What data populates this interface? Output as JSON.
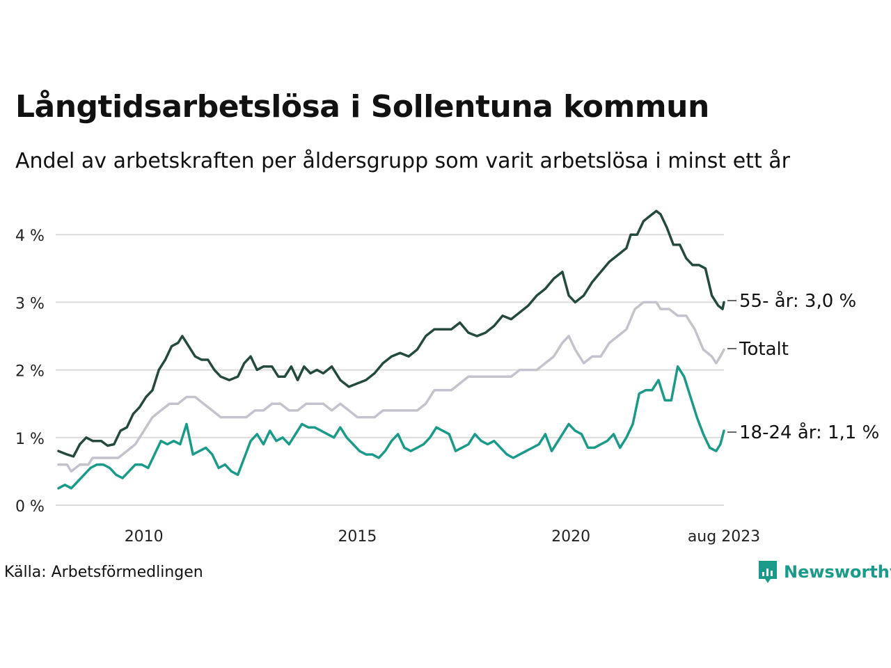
{
  "title": "Långtidsarbetslösa i Sollentuna kommun",
  "subtitle": "Andel av arbetskraften per åldersgrupp som varit arbetslösa i minst ett år",
  "source": "Källa: Arbetsförmedlingen",
  "logo_text": "Newsworthy",
  "colors": {
    "s55": "#24493d",
    "total": "#c4c2cd",
    "young": "#1a9b8a",
    "grid": "#dcdcdc"
  },
  "chart_data": {
    "type": "line",
    "start": "2008-01",
    "end": "2023-08",
    "x_ticks": [
      {
        "label": "2010",
        "value": 2010.0
      },
      {
        "label": "2015",
        "value": 2015.0
      },
      {
        "label": "2020",
        "value": 2020.0
      },
      {
        "label": "aug 2023",
        "value": 2023.583
      }
    ],
    "y_ticks": [
      {
        "label": "0 %",
        "value": 0
      },
      {
        "label": "1 %",
        "value": 1
      },
      {
        "label": "2 %",
        "value": 2
      },
      {
        "label": "3 %",
        "value": 3
      },
      {
        "label": "4 %",
        "value": 4
      }
    ],
    "ylim": [
      0,
      4.4
    ],
    "series": [
      {
        "key": "total",
        "name": "Totalt",
        "end_label": "Totalt",
        "points": [
          [
            2008.0,
            0.6
          ],
          [
            2008.2,
            0.6
          ],
          [
            2008.3,
            0.5
          ],
          [
            2008.5,
            0.6
          ],
          [
            2008.7,
            0.6
          ],
          [
            2008.8,
            0.7
          ],
          [
            2009.0,
            0.7
          ],
          [
            2009.2,
            0.7
          ],
          [
            2009.4,
            0.7
          ],
          [
            2009.6,
            0.8
          ],
          [
            2009.8,
            0.9
          ],
          [
            2010.0,
            1.1
          ],
          [
            2010.2,
            1.3
          ],
          [
            2010.4,
            1.4
          ],
          [
            2010.6,
            1.5
          ],
          [
            2010.8,
            1.5
          ],
          [
            2011.0,
            1.6
          ],
          [
            2011.2,
            1.6
          ],
          [
            2011.4,
            1.5
          ],
          [
            2011.6,
            1.4
          ],
          [
            2011.8,
            1.3
          ],
          [
            2012.0,
            1.3
          ],
          [
            2012.2,
            1.3
          ],
          [
            2012.4,
            1.3
          ],
          [
            2012.6,
            1.4
          ],
          [
            2012.8,
            1.4
          ],
          [
            2013.0,
            1.5
          ],
          [
            2013.2,
            1.5
          ],
          [
            2013.4,
            1.4
          ],
          [
            2013.6,
            1.4
          ],
          [
            2013.8,
            1.5
          ],
          [
            2014.0,
            1.5
          ],
          [
            2014.2,
            1.5
          ],
          [
            2014.4,
            1.4
          ],
          [
            2014.6,
            1.5
          ],
          [
            2014.8,
            1.4
          ],
          [
            2015.0,
            1.3
          ],
          [
            2015.2,
            1.3
          ],
          [
            2015.4,
            1.3
          ],
          [
            2015.6,
            1.4
          ],
          [
            2015.8,
            1.4
          ],
          [
            2016.0,
            1.4
          ],
          [
            2016.2,
            1.4
          ],
          [
            2016.4,
            1.4
          ],
          [
            2016.6,
            1.5
          ],
          [
            2016.8,
            1.7
          ],
          [
            2017.0,
            1.7
          ],
          [
            2017.2,
            1.7
          ],
          [
            2017.4,
            1.8
          ],
          [
            2017.6,
            1.9
          ],
          [
            2017.8,
            1.9
          ],
          [
            2018.0,
            1.9
          ],
          [
            2018.2,
            1.9
          ],
          [
            2018.4,
            1.9
          ],
          [
            2018.6,
            1.9
          ],
          [
            2018.8,
            2.0
          ],
          [
            2019.0,
            2.0
          ],
          [
            2019.2,
            2.0
          ],
          [
            2019.4,
            2.1
          ],
          [
            2019.6,
            2.2
          ],
          [
            2019.8,
            2.4
          ],
          [
            2019.95,
            2.5
          ],
          [
            2020.1,
            2.3
          ],
          [
            2020.3,
            2.1
          ],
          [
            2020.5,
            2.2
          ],
          [
            2020.7,
            2.2
          ],
          [
            2020.9,
            2.4
          ],
          [
            2021.1,
            2.5
          ],
          [
            2021.3,
            2.6
          ],
          [
            2021.5,
            2.9
          ],
          [
            2021.7,
            3.0
          ],
          [
            2021.9,
            3.0
          ],
          [
            2022.0,
            3.0
          ],
          [
            2022.1,
            2.9
          ],
          [
            2022.3,
            2.9
          ],
          [
            2022.5,
            2.8
          ],
          [
            2022.7,
            2.8
          ],
          [
            2022.9,
            2.6
          ],
          [
            2023.1,
            2.3
          ],
          [
            2023.3,
            2.2
          ],
          [
            2023.4,
            2.1
          ],
          [
            2023.5,
            2.2
          ],
          [
            2023.583,
            2.3
          ]
        ]
      },
      {
        "key": "s55",
        "name": "55- år",
        "end_label": "55- år: 3,0 %",
        "points": [
          [
            2008.0,
            0.8
          ],
          [
            2008.2,
            0.75
          ],
          [
            2008.35,
            0.72
          ],
          [
            2008.5,
            0.9
          ],
          [
            2008.65,
            1.0
          ],
          [
            2008.8,
            0.95
          ],
          [
            2009.0,
            0.95
          ],
          [
            2009.15,
            0.88
          ],
          [
            2009.3,
            0.9
          ],
          [
            2009.45,
            1.1
          ],
          [
            2009.6,
            1.15
          ],
          [
            2009.75,
            1.35
          ],
          [
            2009.9,
            1.45
          ],
          [
            2010.05,
            1.6
          ],
          [
            2010.2,
            1.7
          ],
          [
            2010.35,
            2.0
          ],
          [
            2010.5,
            2.15
          ],
          [
            2010.65,
            2.35
          ],
          [
            2010.8,
            2.4
          ],
          [
            2010.9,
            2.5
          ],
          [
            2011.05,
            2.35
          ],
          [
            2011.2,
            2.2
          ],
          [
            2011.35,
            2.15
          ],
          [
            2011.5,
            2.15
          ],
          [
            2011.65,
            2.0
          ],
          [
            2011.8,
            1.9
          ],
          [
            2012.0,
            1.85
          ],
          [
            2012.2,
            1.9
          ],
          [
            2012.35,
            2.1
          ],
          [
            2012.5,
            2.2
          ],
          [
            2012.65,
            2.0
          ],
          [
            2012.8,
            2.05
          ],
          [
            2013.0,
            2.05
          ],
          [
            2013.15,
            1.9
          ],
          [
            2013.3,
            1.9
          ],
          [
            2013.45,
            2.05
          ],
          [
            2013.6,
            1.85
          ],
          [
            2013.75,
            2.05
          ],
          [
            2013.9,
            1.95
          ],
          [
            2014.05,
            2.0
          ],
          [
            2014.2,
            1.95
          ],
          [
            2014.4,
            2.05
          ],
          [
            2014.6,
            1.85
          ],
          [
            2014.8,
            1.75
          ],
          [
            2015.0,
            1.8
          ],
          [
            2015.2,
            1.85
          ],
          [
            2015.4,
            1.95
          ],
          [
            2015.6,
            2.1
          ],
          [
            2015.8,
            2.2
          ],
          [
            2016.0,
            2.25
          ],
          [
            2016.2,
            2.2
          ],
          [
            2016.4,
            2.3
          ],
          [
            2016.6,
            2.5
          ],
          [
            2016.8,
            2.6
          ],
          [
            2017.0,
            2.6
          ],
          [
            2017.2,
            2.6
          ],
          [
            2017.4,
            2.7
          ],
          [
            2017.6,
            2.55
          ],
          [
            2017.8,
            2.5
          ],
          [
            2018.0,
            2.55
          ],
          [
            2018.2,
            2.65
          ],
          [
            2018.4,
            2.8
          ],
          [
            2018.6,
            2.75
          ],
          [
            2018.8,
            2.85
          ],
          [
            2019.0,
            2.95
          ],
          [
            2019.2,
            3.1
          ],
          [
            2019.4,
            3.2
          ],
          [
            2019.6,
            3.35
          ],
          [
            2019.8,
            3.45
          ],
          [
            2019.95,
            3.1
          ],
          [
            2020.1,
            3.0
          ],
          [
            2020.3,
            3.1
          ],
          [
            2020.5,
            3.3
          ],
          [
            2020.7,
            3.45
          ],
          [
            2020.9,
            3.6
          ],
          [
            2021.1,
            3.7
          ],
          [
            2021.3,
            3.8
          ],
          [
            2021.4,
            4.0
          ],
          [
            2021.55,
            4.0
          ],
          [
            2021.7,
            4.2
          ],
          [
            2021.9,
            4.3
          ],
          [
            2022.0,
            4.35
          ],
          [
            2022.1,
            4.3
          ],
          [
            2022.25,
            4.1
          ],
          [
            2022.4,
            3.85
          ],
          [
            2022.55,
            3.85
          ],
          [
            2022.7,
            3.65
          ],
          [
            2022.85,
            3.55
          ],
          [
            2023.0,
            3.55
          ],
          [
            2023.15,
            3.5
          ],
          [
            2023.3,
            3.1
          ],
          [
            2023.45,
            2.95
          ],
          [
            2023.55,
            2.9
          ],
          [
            2023.583,
            3.0
          ]
        ]
      },
      {
        "key": "young",
        "name": "18-24 år",
        "end_label": "18-24 år: 1,1 %",
        "points": [
          [
            2008.0,
            0.25
          ],
          [
            2008.15,
            0.3
          ],
          [
            2008.3,
            0.25
          ],
          [
            2008.45,
            0.35
          ],
          [
            2008.6,
            0.45
          ],
          [
            2008.75,
            0.55
          ],
          [
            2008.9,
            0.6
          ],
          [
            2009.05,
            0.6
          ],
          [
            2009.2,
            0.55
          ],
          [
            2009.35,
            0.45
          ],
          [
            2009.5,
            0.4
          ],
          [
            2009.65,
            0.5
          ],
          [
            2009.8,
            0.6
          ],
          [
            2009.95,
            0.6
          ],
          [
            2010.1,
            0.55
          ],
          [
            2010.25,
            0.75
          ],
          [
            2010.4,
            0.95
          ],
          [
            2010.55,
            0.9
          ],
          [
            2010.7,
            0.95
          ],
          [
            2010.85,
            0.9
          ],
          [
            2011.0,
            1.2
          ],
          [
            2011.15,
            0.75
          ],
          [
            2011.3,
            0.8
          ],
          [
            2011.45,
            0.85
          ],
          [
            2011.6,
            0.75
          ],
          [
            2011.75,
            0.55
          ],
          [
            2011.9,
            0.6
          ],
          [
            2012.05,
            0.5
          ],
          [
            2012.2,
            0.45
          ],
          [
            2012.35,
            0.7
          ],
          [
            2012.5,
            0.95
          ],
          [
            2012.65,
            1.05
          ],
          [
            2012.8,
            0.9
          ],
          [
            2012.95,
            1.1
          ],
          [
            2013.1,
            0.95
          ],
          [
            2013.25,
            1.0
          ],
          [
            2013.4,
            0.9
          ],
          [
            2013.55,
            1.05
          ],
          [
            2013.7,
            1.2
          ],
          [
            2013.85,
            1.15
          ],
          [
            2014.0,
            1.15
          ],
          [
            2014.15,
            1.1
          ],
          [
            2014.3,
            1.05
          ],
          [
            2014.45,
            1.0
          ],
          [
            2014.6,
            1.15
          ],
          [
            2014.75,
            1.0
          ],
          [
            2014.9,
            0.9
          ],
          [
            2015.05,
            0.8
          ],
          [
            2015.2,
            0.75
          ],
          [
            2015.35,
            0.75
          ],
          [
            2015.5,
            0.7
          ],
          [
            2015.65,
            0.8
          ],
          [
            2015.8,
            0.95
          ],
          [
            2015.95,
            1.05
          ],
          [
            2016.1,
            0.85
          ],
          [
            2016.25,
            0.8
          ],
          [
            2016.4,
            0.85
          ],
          [
            2016.55,
            0.9
          ],
          [
            2016.7,
            1.0
          ],
          [
            2016.85,
            1.15
          ],
          [
            2017.0,
            1.1
          ],
          [
            2017.15,
            1.05
          ],
          [
            2017.3,
            0.8
          ],
          [
            2017.45,
            0.85
          ],
          [
            2017.6,
            0.9
          ],
          [
            2017.75,
            1.05
          ],
          [
            2017.9,
            0.95
          ],
          [
            2018.05,
            0.9
          ],
          [
            2018.2,
            0.95
          ],
          [
            2018.35,
            0.85
          ],
          [
            2018.5,
            0.75
          ],
          [
            2018.65,
            0.7
          ],
          [
            2018.8,
            0.75
          ],
          [
            2018.95,
            0.8
          ],
          [
            2019.1,
            0.85
          ],
          [
            2019.25,
            0.9
          ],
          [
            2019.4,
            1.05
          ],
          [
            2019.55,
            0.8
          ],
          [
            2019.7,
            0.95
          ],
          [
            2019.85,
            1.1
          ],
          [
            2019.95,
            1.2
          ],
          [
            2020.1,
            1.1
          ],
          [
            2020.25,
            1.05
          ],
          [
            2020.4,
            0.85
          ],
          [
            2020.55,
            0.85
          ],
          [
            2020.7,
            0.9
          ],
          [
            2020.85,
            0.95
          ],
          [
            2021.0,
            1.05
          ],
          [
            2021.15,
            0.85
          ],
          [
            2021.3,
            1.0
          ],
          [
            2021.45,
            1.2
          ],
          [
            2021.6,
            1.65
          ],
          [
            2021.75,
            1.7
          ],
          [
            2021.9,
            1.7
          ],
          [
            2022.05,
            1.85
          ],
          [
            2022.2,
            1.55
          ],
          [
            2022.35,
            1.55
          ],
          [
            2022.5,
            2.05
          ],
          [
            2022.65,
            1.9
          ],
          [
            2022.8,
            1.6
          ],
          [
            2022.95,
            1.3
          ],
          [
            2023.1,
            1.05
          ],
          [
            2023.25,
            0.85
          ],
          [
            2023.4,
            0.8
          ],
          [
            2023.5,
            0.9
          ],
          [
            2023.583,
            1.1
          ]
        ]
      }
    ]
  }
}
